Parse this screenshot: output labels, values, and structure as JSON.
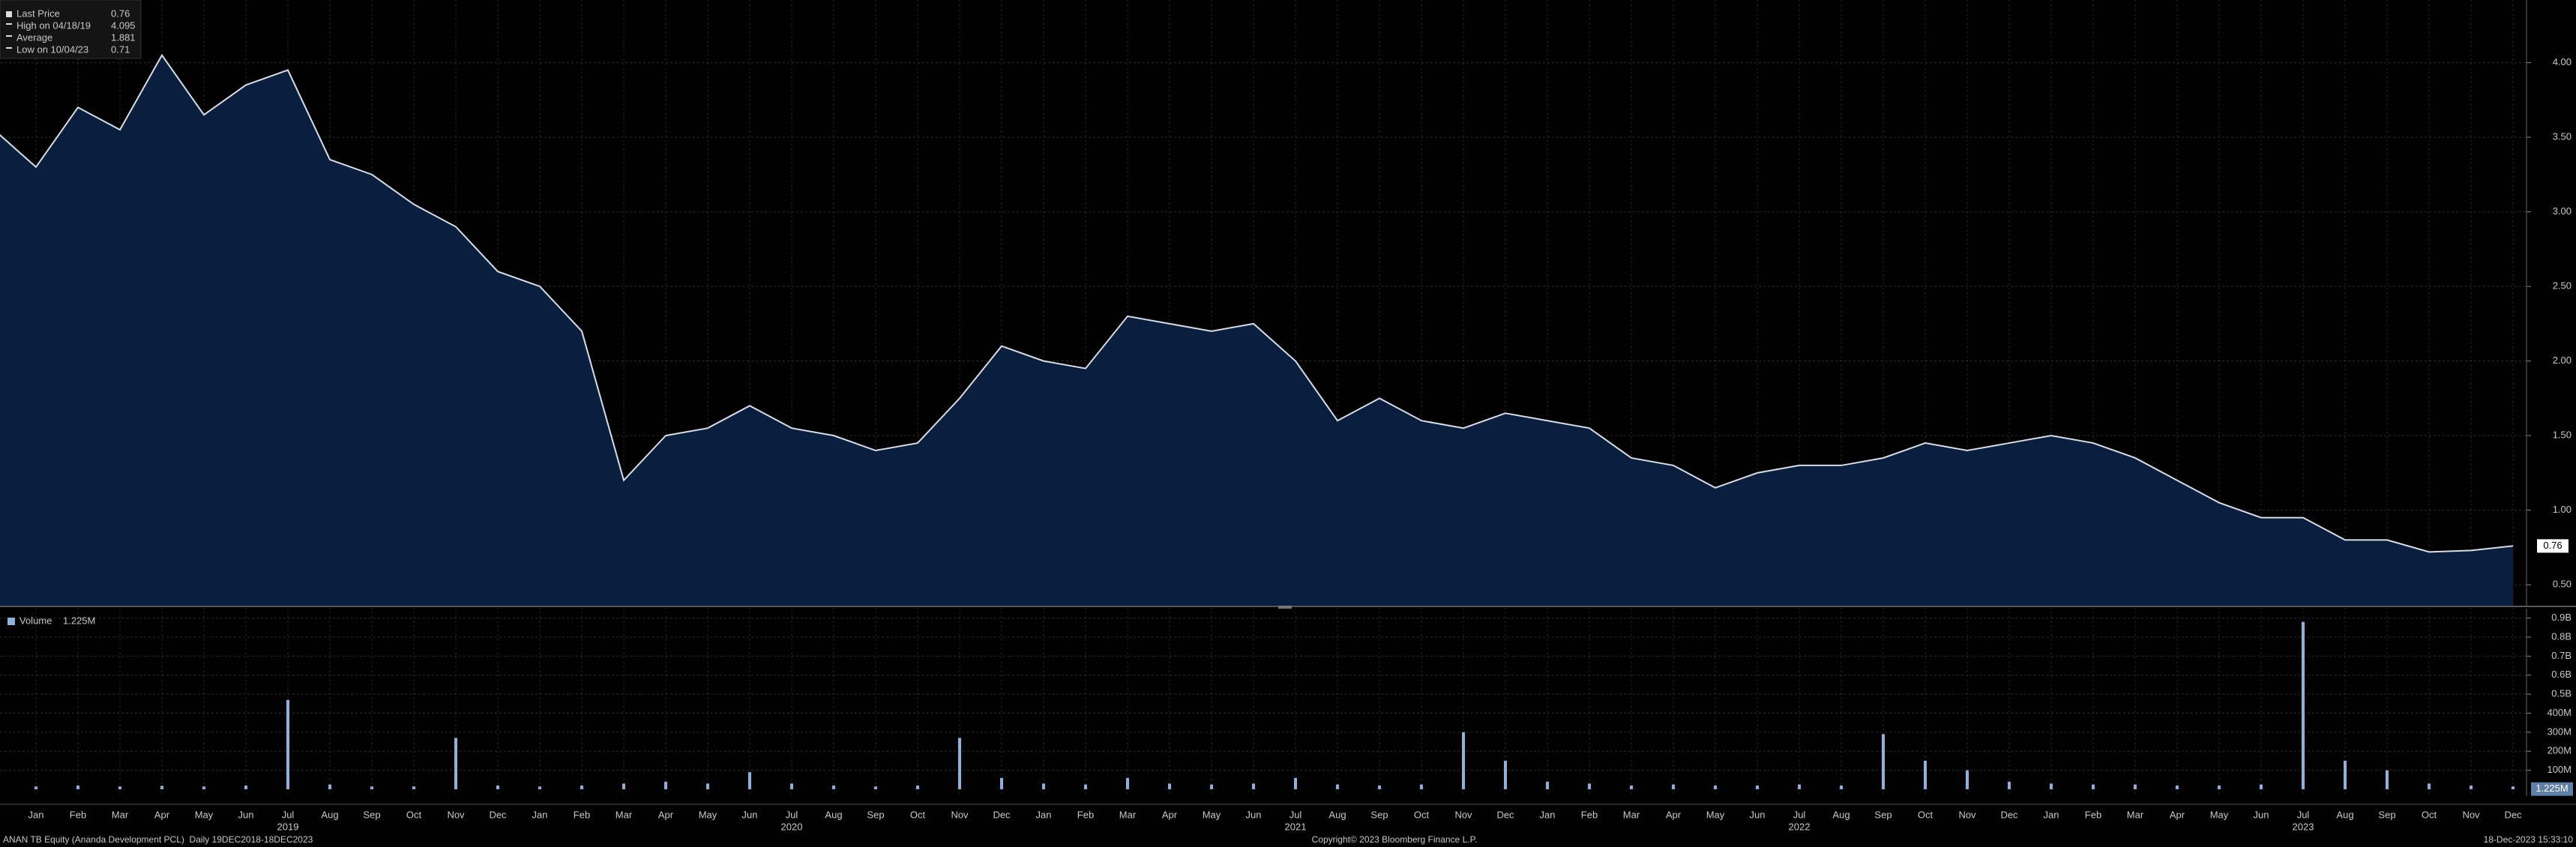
{
  "chart_data": [
    {
      "type": "area",
      "color": "#d8dde6",
      "fill": "#0a1f3d",
      "legend": [
        {
          "label": "Last Price",
          "value": 0.76
        },
        {
          "label": "High on 04/18/19",
          "value": 4.095
        },
        {
          "label": "Average",
          "value": 1.881
        },
        {
          "label": "Low on 10/04/23",
          "value": 0.71
        }
      ],
      "x": [
        "2018-12",
        "2019-01",
        "2019-02",
        "2019-03",
        "2019-04",
        "2019-05",
        "2019-06",
        "2019-07",
        "2019-08",
        "2019-09",
        "2019-10",
        "2019-11",
        "2019-12",
        "2020-01",
        "2020-02",
        "2020-03",
        "2020-04",
        "2020-05",
        "2020-06",
        "2020-07",
        "2020-08",
        "2020-09",
        "2020-10",
        "2020-11",
        "2020-12",
        "2021-01",
        "2021-02",
        "2021-03",
        "2021-04",
        "2021-05",
        "2021-06",
        "2021-07",
        "2021-08",
        "2021-09",
        "2021-10",
        "2021-11",
        "2021-12",
        "2022-01",
        "2022-02",
        "2022-03",
        "2022-04",
        "2022-05",
        "2022-06",
        "2022-07",
        "2022-08",
        "2022-09",
        "2022-10",
        "2022-11",
        "2022-12",
        "2023-01",
        "2023-02",
        "2023-03",
        "2023-04",
        "2023-05",
        "2023-06",
        "2023-07",
        "2023-08",
        "2023-09",
        "2023-10",
        "2023-11",
        "2023-12"
      ],
      "values": [
        3.55,
        3.3,
        3.7,
        3.55,
        4.05,
        3.65,
        3.85,
        3.95,
        3.35,
        3.25,
        3.05,
        2.9,
        2.6,
        2.5,
        2.2,
        1.2,
        1.5,
        1.55,
        1.7,
        1.55,
        1.5,
        1.4,
        1.45,
        1.75,
        2.1,
        2.0,
        1.95,
        2.3,
        2.25,
        2.2,
        2.25,
        2.0,
        1.6,
        1.75,
        1.6,
        1.55,
        1.65,
        1.6,
        1.55,
        1.35,
        1.3,
        1.15,
        1.25,
        1.3,
        1.3,
        1.35,
        1.45,
        1.4,
        1.45,
        1.5,
        1.45,
        1.35,
        1.2,
        1.05,
        0.95,
        0.95,
        0.8,
        0.8,
        0.72,
        0.73,
        0.76
      ],
      "ylim": [
        0.36,
        4.42
      ],
      "yticks": [
        {
          "value": 0.5,
          "label": "0.50"
        },
        {
          "value": 1,
          "label": "1.00"
        },
        {
          "value": 1.5,
          "label": "1.50"
        },
        {
          "value": 2,
          "label": "2.00"
        },
        {
          "value": 2.5,
          "label": "2.50"
        },
        {
          "value": 3,
          "label": "3.00"
        },
        {
          "value": 3.5,
          "label": "3.50"
        },
        {
          "value": 4,
          "label": "4.00"
        }
      ],
      "grid": true
    },
    {
      "type": "bar",
      "color": "#8fb0d8",
      "legend": [
        {
          "label": "Volume",
          "value": 1225000,
          "value_label": "1.225M"
        }
      ],
      "values": [
        15000000,
        15000000,
        20000000,
        15000000,
        18000000,
        15000000,
        20000000,
        470000000,
        25000000,
        15000000,
        15000000,
        270000000,
        20000000,
        15000000,
        20000000,
        30000000,
        40000000,
        30000000,
        90000000,
        30000000,
        20000000,
        15000000,
        20000000,
        270000000,
        60000000,
        30000000,
        25000000,
        60000000,
        30000000,
        25000000,
        30000000,
        60000000,
        25000000,
        20000000,
        25000000,
        300000000,
        150000000,
        40000000,
        30000000,
        20000000,
        25000000,
        20000000,
        20000000,
        25000000,
        20000000,
        290000000,
        150000000,
        100000000,
        40000000,
        30000000,
        25000000,
        25000000,
        20000000,
        20000000,
        25000000,
        880000000,
        150000000,
        100000000,
        30000000,
        20000000,
        15000000
      ],
      "ylim": [
        0,
        930000000
      ],
      "yticks": [
        {
          "value": 100000000,
          "label": "100M"
        },
        {
          "value": 200000000,
          "label": "200M"
        },
        {
          "value": 300000000,
          "label": "300M"
        },
        {
          "value": 400000000,
          "label": "400M"
        },
        {
          "value": 500000000,
          "label": "0.5B"
        },
        {
          "value": 600000000,
          "label": "0.6B"
        },
        {
          "value": 700000000,
          "label": "0.7B"
        },
        {
          "value": 800000000,
          "label": "0.8B"
        },
        {
          "value": 900000000,
          "label": "0.9B"
        }
      ],
      "grid": true
    }
  ],
  "xticks": [
    {
      "value": "2019-01",
      "label": "Jan"
    },
    {
      "value": "2019-02",
      "label": "Feb"
    },
    {
      "value": "2019-03",
      "label": "Mar"
    },
    {
      "value": "2019-04",
      "label": "Apr"
    },
    {
      "value": "2019-05",
      "label": "May"
    },
    {
      "value": "2019-06",
      "label": "Jun"
    },
    {
      "value": "2019-07",
      "label": "Jul"
    },
    {
      "value": "2019-08",
      "label": "Aug"
    },
    {
      "value": "2019-09",
      "label": "Sep"
    },
    {
      "value": "2019-10",
      "label": "Oct"
    },
    {
      "value": "2019-11",
      "label": "Nov"
    },
    {
      "value": "2019-12",
      "label": "Dec"
    },
    {
      "value": "2020-01",
      "label": "Jan"
    },
    {
      "value": "2020-02",
      "label": "Feb"
    },
    {
      "value": "2020-03",
      "label": "Mar"
    },
    {
      "value": "2020-04",
      "label": "Apr"
    },
    {
      "value": "2020-05",
      "label": "May"
    },
    {
      "value": "2020-06",
      "label": "Jun"
    },
    {
      "value": "2020-07",
      "label": "Jul"
    },
    {
      "value": "2020-08",
      "label": "Aug"
    },
    {
      "value": "2020-09",
      "label": "Sep"
    },
    {
      "value": "2020-10",
      "label": "Oct"
    },
    {
      "value": "2020-11",
      "label": "Nov"
    },
    {
      "value": "2020-12",
      "label": "Dec"
    },
    {
      "value": "2021-01",
      "label": "Jan"
    },
    {
      "value": "2021-02",
      "label": "Feb"
    },
    {
      "value": "2021-03",
      "label": "Mar"
    },
    {
      "value": "2021-04",
      "label": "Apr"
    },
    {
      "value": "2021-05",
      "label": "May"
    },
    {
      "value": "2021-06",
      "label": "Jun"
    },
    {
      "value": "2021-07",
      "label": "Jul"
    },
    {
      "value": "2021-08",
      "label": "Aug"
    },
    {
      "value": "2021-09",
      "label": "Sep"
    },
    {
      "value": "2021-10",
      "label": "Oct"
    },
    {
      "value": "2021-11",
      "label": "Nov"
    },
    {
      "value": "2021-12",
      "label": "Dec"
    },
    {
      "value": "2022-01",
      "label": "Jan"
    },
    {
      "value": "2022-02",
      "label": "Feb"
    },
    {
      "value": "2022-03",
      "label": "Mar"
    },
    {
      "value": "2022-04",
      "label": "Apr"
    },
    {
      "value": "2022-05",
      "label": "May"
    },
    {
      "value": "2022-06",
      "label": "Jun"
    },
    {
      "value": "2022-07",
      "label": "Jul"
    },
    {
      "value": "2022-08",
      "label": "Aug"
    },
    {
      "value": "2022-09",
      "label": "Sep"
    },
    {
      "value": "2022-10",
      "label": "Oct"
    },
    {
      "value": "2022-11",
      "label": "Nov"
    },
    {
      "value": "2022-12",
      "label": "Dec"
    },
    {
      "value": "2023-01",
      "label": "Jan"
    },
    {
      "value": "2023-02",
      "label": "Feb"
    },
    {
      "value": "2023-03",
      "label": "Mar"
    },
    {
      "value": "2023-04",
      "label": "Apr"
    },
    {
      "value": "2023-05",
      "label": "May"
    },
    {
      "value": "2023-06",
      "label": "Jun"
    },
    {
      "value": "2023-07",
      "label": "Jul"
    },
    {
      "value": "2023-08",
      "label": "Aug"
    },
    {
      "value": "2023-09",
      "label": "Sep"
    },
    {
      "value": "2023-10",
      "label": "Oct"
    },
    {
      "value": "2023-11",
      "label": "Nov"
    },
    {
      "value": "2023-12",
      "label": "Dec"
    }
  ],
  "year_ticks": [
    {
      "value": "2019-07",
      "label": "2019"
    },
    {
      "value": "2020-07",
      "label": "2020"
    },
    {
      "value": "2021-07",
      "label": "2021"
    },
    {
      "value": "2022-07",
      "label": "2022"
    },
    {
      "value": "2023-07",
      "label": "2023"
    }
  ],
  "footer": {
    "left": "ANAN TB Equity (Ananda Development PCL)  Daily 19DEC2018-18DEC2023",
    "center": "Copyright© 2023 Bloomberg Finance L.P.",
    "right": "18-Dec-2023 15:33:10"
  }
}
